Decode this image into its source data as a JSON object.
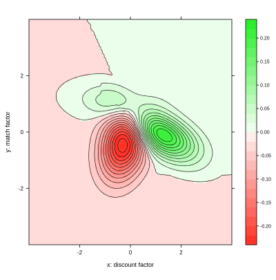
{
  "chart_data": {
    "type": "contour",
    "xlabel": "x: discount factor",
    "ylabel": "y: match factor",
    "xlim": [
      -4,
      4
    ],
    "ylim": [
      -4,
      4
    ],
    "x_ticks": [
      -2,
      0,
      2
    ],
    "y_ticks": [
      -2,
      0,
      2
    ],
    "colorbar": {
      "range": [
        -0.24,
        0.24
      ],
      "ticks": [
        0.2,
        0.15,
        0.1,
        0.05,
        0.0,
        -0.05,
        -0.1,
        -0.15,
        -0.2
      ],
      "tick_labels": [
        "0.20",
        "0.15",
        "0.10",
        "0.05",
        "0.00",
        "-0.05",
        "-0.10",
        "-0.15",
        "-0.20"
      ],
      "negative_color": "#ff2b1f",
      "positive_color": "#22ee22",
      "zero_color": "#ffffff"
    },
    "features": [
      {
        "kind": "minimum",
        "x": -0.25,
        "y": -0.35,
        "value": -0.22
      },
      {
        "kind": "maximum",
        "x": 1.2,
        "y": -0.05,
        "value": 0.2
      },
      {
        "kind": "maximum",
        "x": -0.45,
        "y": 1.05,
        "value": 0.08
      }
    ],
    "contour_levels": [
      -0.22,
      -0.2,
      -0.18,
      -0.16,
      -0.14,
      -0.12,
      -0.1,
      -0.08,
      -0.06,
      -0.04,
      -0.02,
      0,
      0.02,
      0.04,
      0.06,
      0.08,
      0.1,
      0.12,
      0.14,
      0.16,
      0.18,
      0.2
    ]
  }
}
